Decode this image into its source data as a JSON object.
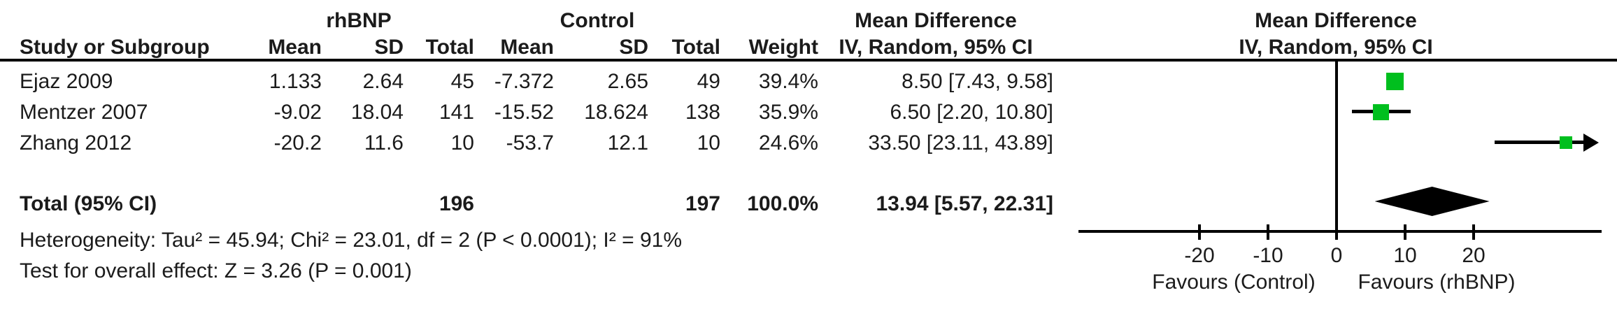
{
  "table": {
    "group1_header": "rhBNP",
    "group2_header": "Control",
    "effect_header": "Mean Difference",
    "columns": [
      "Study or Subgroup",
      "Mean",
      "SD",
      "Total",
      "Mean",
      "SD",
      "Total",
      "Weight",
      "IV, Random, 95% CI"
    ],
    "studies": [
      {
        "name": "Ejaz 2009",
        "mean1": "1.133",
        "sd1": "2.64",
        "total1": "45",
        "mean2": "-7.372",
        "sd2": "2.65",
        "total2": "49",
        "weight": "39.4%",
        "ci": "8.50 [7.43, 9.58]"
      },
      {
        "name": "Mentzer 2007",
        "mean1": "-9.02",
        "sd1": "18.04",
        "total1": "141",
        "mean2": "-15.52",
        "sd2": "18.624",
        "total2": "138",
        "weight": "35.9%",
        "ci": "6.50 [2.20, 10.80]"
      },
      {
        "name": "Zhang 2012",
        "mean1": "-20.2",
        "sd1": "11.6",
        "total1": "10",
        "mean2": "-53.7",
        "sd2": "12.1",
        "total2": "10",
        "weight": "24.6%",
        "ci": "33.50 [23.11, 43.89]"
      }
    ],
    "total_row": {
      "label": "Total (95% CI)",
      "total1": "196",
      "total2": "197",
      "weight": "100.0%",
      "ci": "13.94 [5.57, 22.31]"
    },
    "heterogeneity": "Heterogeneity: Tau² = 45.94; Chi² = 23.01, df = 2 (P < 0.0001); I² = 91%",
    "overall_effect": "Test for overall effect: Z = 3.26 (P = 0.001)"
  },
  "plot": {
    "header": "Mean Difference",
    "subheader": "IV, Random, 95% CI",
    "favours_left": "Favours (Control)",
    "favours_right": "Favours (rhBNP)",
    "marker_color": "#00bf1e",
    "line_color": "#000000"
  },
  "chart_data": {
    "type": "forest",
    "effect_measure": "Mean Difference, IV, Random, 95% CI",
    "studies": [
      {
        "label": "Ejaz 2009",
        "md": 8.5,
        "ci_low": 7.43,
        "ci_high": 9.58,
        "weight_pct": 39.4
      },
      {
        "label": "Mentzer 2007",
        "md": 6.5,
        "ci_low": 2.2,
        "ci_high": 10.8,
        "weight_pct": 35.9
      },
      {
        "label": "Zhang 2012",
        "md": 33.5,
        "ci_low": 23.11,
        "ci_high": 43.89,
        "weight_pct": 24.6
      }
    ],
    "total": {
      "label": "Total (95% CI)",
      "md": 13.94,
      "ci_low": 5.57,
      "ci_high": 22.31,
      "weight_pct": 100.0
    },
    "ticks": [
      -20,
      -10,
      0,
      10,
      20
    ],
    "xlim": [
      -37.7,
      38.7
    ],
    "favours_left": "Favours (Control)",
    "favours_right": "Favours (rhBNP)"
  }
}
